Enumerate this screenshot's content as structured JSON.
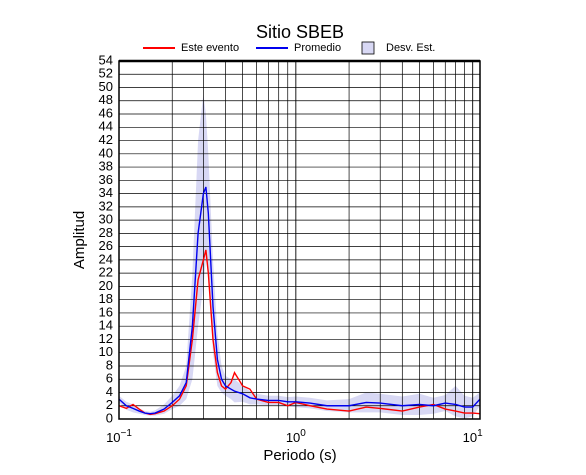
{
  "chart_data": {
    "type": "line",
    "title": "Sitio SBEB",
    "xlabel": "Periodo (s)",
    "ylabel": "Amplitud",
    "xscale": "log",
    "grid": true,
    "legend_position": "top",
    "xlim": [
      0.1,
      11
    ],
    "ylim": [
      0,
      54
    ],
    "xticks": [
      {
        "value": 0.1,
        "label": "10−1"
      },
      {
        "value": 1,
        "label": "100"
      },
      {
        "value": 10,
        "label": "101"
      }
    ],
    "x_minor_ticks": [
      0.2,
      0.3,
      0.4,
      0.5,
      0.6,
      0.7,
      0.8,
      0.9,
      2,
      3,
      4,
      5,
      6,
      7,
      8,
      9
    ],
    "yticks": [
      0,
      2,
      4,
      6,
      8,
      10,
      12,
      14,
      16,
      18,
      20,
      22,
      24,
      26,
      28,
      30,
      32,
      34,
      36,
      38,
      40,
      42,
      44,
      46,
      48,
      50,
      52,
      54
    ],
    "x": [
      0.1,
      0.11,
      0.12,
      0.13,
      0.14,
      0.15,
      0.16,
      0.18,
      0.2,
      0.22,
      0.24,
      0.26,
      0.28,
      0.3,
      0.31,
      0.32,
      0.34,
      0.36,
      0.38,
      0.4,
      0.43,
      0.45,
      0.5,
      0.55,
      0.6,
      0.7,
      0.8,
      0.9,
      1.0,
      1.2,
      1.5,
      2,
      2.5,
      3,
      4,
      5,
      6,
      7,
      8,
      9,
      10,
      11
    ],
    "band": {
      "name": "Desv. Est.",
      "color": "#d8d8f4",
      "upper": [
        3.5,
        2.6,
        2.2,
        1.6,
        1.2,
        1.1,
        1.3,
        2.2,
        3.5,
        5,
        8,
        22,
        42,
        49,
        46,
        40,
        24,
        13,
        8,
        6.5,
        6,
        6,
        5,
        4.2,
        3.8,
        3.5,
        3.5,
        3.3,
        3.4,
        3.2,
        2.8,
        3,
        4,
        3.8,
        3.4,
        3.8,
        3.2,
        3.6,
        5,
        3.5,
        3.2,
        4
      ],
      "lower": [
        2.5,
        1.4,
        1.0,
        0.8,
        0.6,
        0.5,
        0.5,
        0.8,
        1.5,
        2,
        3,
        6,
        14,
        20,
        24,
        22,
        10,
        5,
        4,
        3.5,
        3,
        2.5,
        2.6,
        2.2,
        2.2,
        2.1,
        2.1,
        1.9,
        1.8,
        1.6,
        1.2,
        1.0,
        1.0,
        1.0,
        0.6,
        0.6,
        0.8,
        1.2,
        0.4,
        0.1,
        0.4,
        2.0
      ]
    },
    "series": [
      {
        "name": "Este evento",
        "color": "#ff0000",
        "values": [
          2.0,
          1.6,
          2.2,
          1.5,
          0.9,
          0.7,
          0.8,
          1.2,
          2.0,
          3.0,
          5,
          12,
          21,
          24,
          25.5,
          22,
          12,
          7,
          5,
          4.5,
          5.5,
          7,
          5,
          4.5,
          3,
          2.5,
          2.5,
          2,
          2.5,
          2,
          1.5,
          1.2,
          1.8,
          1.6,
          1.2,
          1.8,
          2.2,
          1.5,
          1.2,
          0.9,
          0.9,
          0.8
        ]
      },
      {
        "name": "Promedio",
        "color": "#0000ee",
        "values": [
          3,
          2,
          1.6,
          1.2,
          0.9,
          0.8,
          0.9,
          1.5,
          2.5,
          3.5,
          5.5,
          14,
          28,
          34,
          35,
          31,
          17,
          9,
          6,
          5,
          4.5,
          4.2,
          3.8,
          3.2,
          3,
          2.8,
          2.8,
          2.6,
          2.6,
          2.4,
          2,
          2,
          2.5,
          2.4,
          2,
          2.2,
          2,
          2.4,
          2.2,
          1.8,
          1.8,
          3
        ]
      }
    ]
  }
}
